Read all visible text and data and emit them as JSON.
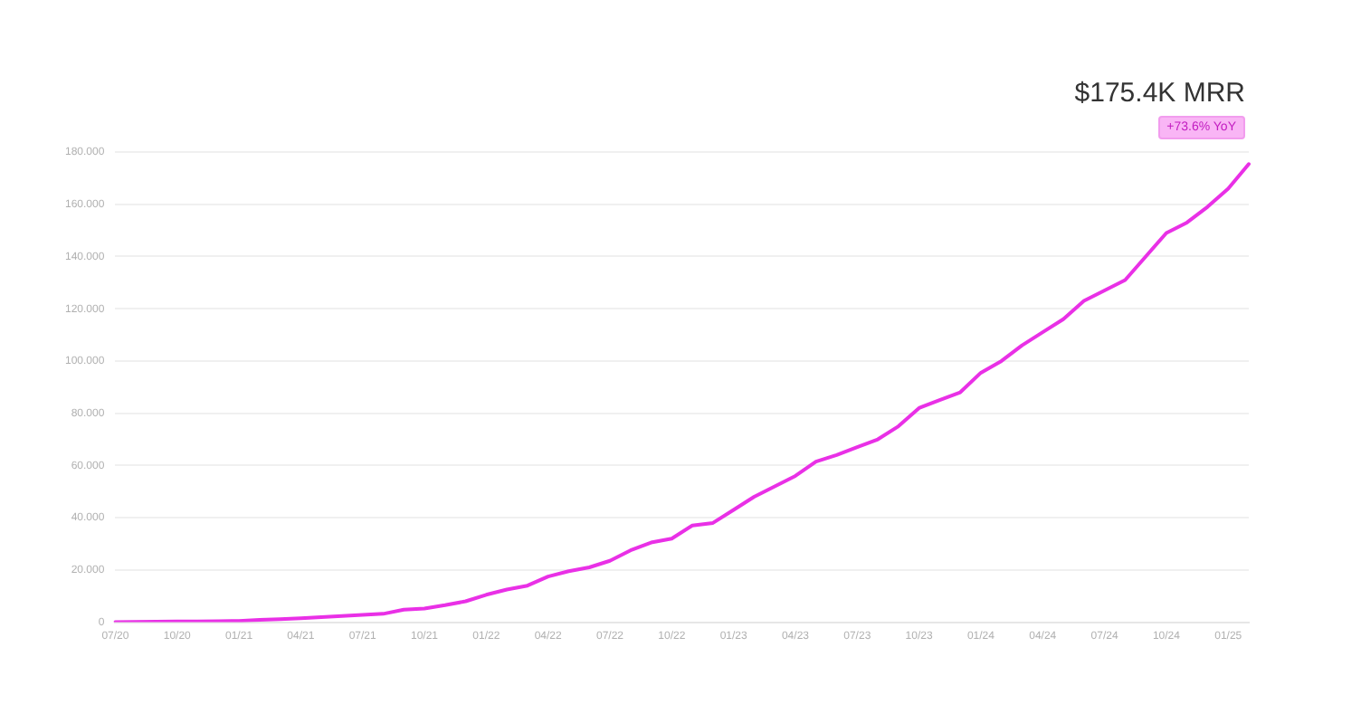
{
  "chart_data": {
    "type": "line",
    "title": "$175.4K MRR",
    "subtitle": "+73.6% YoY",
    "categories": [
      "07/20",
      null,
      null,
      "10/20",
      null,
      null,
      "01/21",
      null,
      null,
      "04/21",
      null,
      null,
      "07/21",
      null,
      null,
      "10/21",
      null,
      null,
      "01/22",
      null,
      null,
      "04/22",
      null,
      null,
      "07/22",
      null,
      null,
      "10/22",
      null,
      null,
      "01/23",
      null,
      null,
      "04/23",
      null,
      null,
      "07/23",
      null,
      null,
      "10/23",
      null,
      null,
      "01/24",
      null,
      null,
      "04/24",
      null,
      null,
      "07/24",
      null,
      null,
      "10/24",
      null,
      null,
      "01/25",
      null
    ],
    "series": [
      {
        "color": "#e930e6",
        "values": [
          0,
          0.1,
          0.2,
          0.3,
          0.3,
          0.4,
          0.5,
          0.9,
          1.2,
          1.5,
          1.9,
          2.4,
          2.8,
          3.2,
          4.8,
          5.2,
          6.5,
          8,
          10.5,
          12.5,
          14,
          17.5,
          19.5,
          21,
          23.5,
          27.5,
          30.5,
          32,
          37,
          38,
          43,
          48,
          52,
          56,
          61.5,
          64,
          67,
          70,
          75,
          82,
          85,
          88,
          95.5,
          100,
          106,
          111,
          116,
          123,
          127,
          131,
          140,
          149,
          153,
          159,
          166,
          175.4
        ]
      }
    ],
    "ylim": [
      0,
      180
    ],
    "yticks": [
      {
        "value": 0,
        "label": "0"
      },
      {
        "value": 20,
        "label": "20.000"
      },
      {
        "value": 40,
        "label": "40.000"
      },
      {
        "value": 60,
        "label": "60.000"
      },
      {
        "value": 80,
        "label": "80.000"
      },
      {
        "value": 100,
        "label": "100.000"
      },
      {
        "value": 120,
        "label": "120.000"
      },
      {
        "value": 140,
        "label": "140.000"
      },
      {
        "value": 160,
        "label": "160.000"
      },
      {
        "value": 180,
        "label": "180.000"
      }
    ],
    "grid": "y",
    "legend": false,
    "marker": "none",
    "line_style": "solid"
  }
}
